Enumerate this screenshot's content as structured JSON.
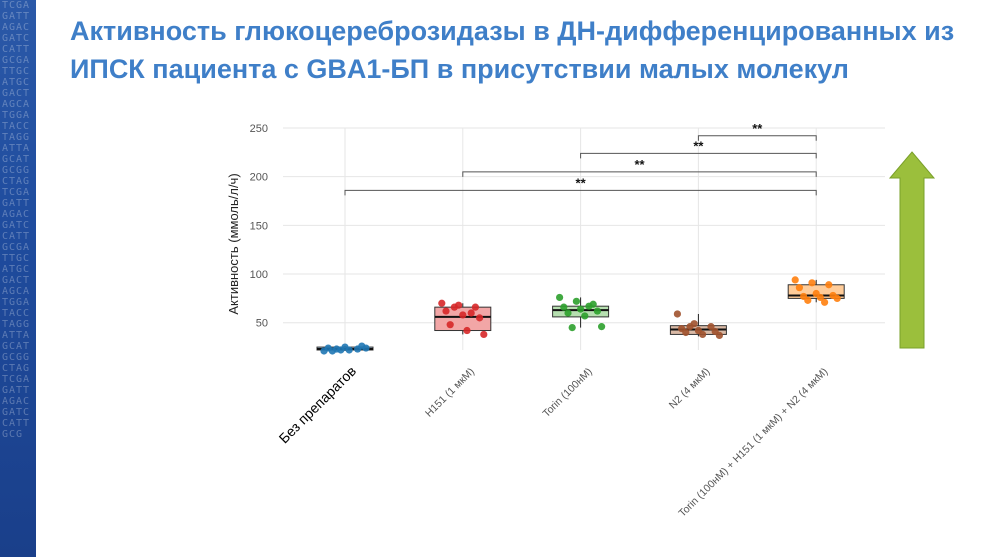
{
  "slide": {
    "title": "Активность глюкоцереброзидазы в ДН-дифференцированных из ИПСК пациента с GBA1-БП в присутствии малых молекул",
    "side_pattern": "TCGAGATTAGACGATCCATTGCGATTGCATGCGACTAGCATGGATACCTAGGATTAGCATGCGGCTAGTCGAGATTAGACGATCCATTGCGATTGCATGCGACTAGCATGGATACCTAGGATTAGCATGCGGCTAGTCGAGATTAGACGATCCATTGCG"
  },
  "colors": {
    "title": "#3f7fc8",
    "strip": "#1f4c9e",
    "arrow": "#9bbf3c",
    "series": [
      "#1f77b4",
      "#d62728",
      "#2ca02c",
      "#a0522d",
      "#ff7f0e"
    ],
    "fills": [
      "#a9c6e0",
      "#f2a6a6",
      "#b6dfb0",
      "#d9b9a5",
      "#ffcc99"
    ]
  },
  "chart_data": {
    "type": "boxplot",
    "ylabel": "Активность (ммоль/л/ч)",
    "xlabel": "",
    "ylim": [
      22,
      250
    ],
    "yticks": [
      50,
      100,
      150,
      200,
      250
    ],
    "grid": true,
    "categories": [
      "Без препаратов",
      "H151 (1 мкМ)",
      "Torin (100нМ)",
      "N2 (4 мкМ)",
      "Torin (100нМ) + H151 (1 мкМ) + N2 (4 мкМ)"
    ],
    "boxes": [
      {
        "q1": 22,
        "median": 23,
        "q3": 25,
        "whisker_low": 21,
        "whisker_high": 26
      },
      {
        "q1": 42,
        "median": 56,
        "q3": 66,
        "whisker_low": 38,
        "whisker_high": 70
      },
      {
        "q1": 56,
        "median": 63,
        "q3": 67,
        "whisker_low": 45,
        "whisker_high": 76
      },
      {
        "q1": 38,
        "median": 43,
        "q3": 47,
        "whisker_low": 36,
        "whisker_high": 59
      },
      {
        "q1": 75,
        "median": 78,
        "q3": 89,
        "whisker_low": 71,
        "whisker_high": 94
      }
    ],
    "points": [
      [
        21,
        22,
        23,
        24,
        25,
        26,
        21,
        22,
        24,
        23
      ],
      [
        70,
        68,
        66,
        62,
        58,
        55,
        48,
        42,
        38,
        66,
        60
      ],
      [
        76,
        72,
        69,
        66,
        64,
        62,
        60,
        57,
        46,
        45,
        67
      ],
      [
        59,
        49,
        46,
        44,
        42,
        41,
        40,
        38,
        37,
        46
      ],
      [
        94,
        91,
        89,
        86,
        80,
        78,
        77,
        76,
        75,
        73,
        71
      ]
    ],
    "significance": [
      {
        "from": 3,
        "to": 4,
        "label": "**",
        "y": 242
      },
      {
        "from": 2,
        "to": 4,
        "label": "**",
        "y": 224
      },
      {
        "from": 1,
        "to": 4,
        "label": "**",
        "y": 205
      },
      {
        "from": 0,
        "to": 4,
        "label": "**",
        "y": 186
      }
    ]
  }
}
